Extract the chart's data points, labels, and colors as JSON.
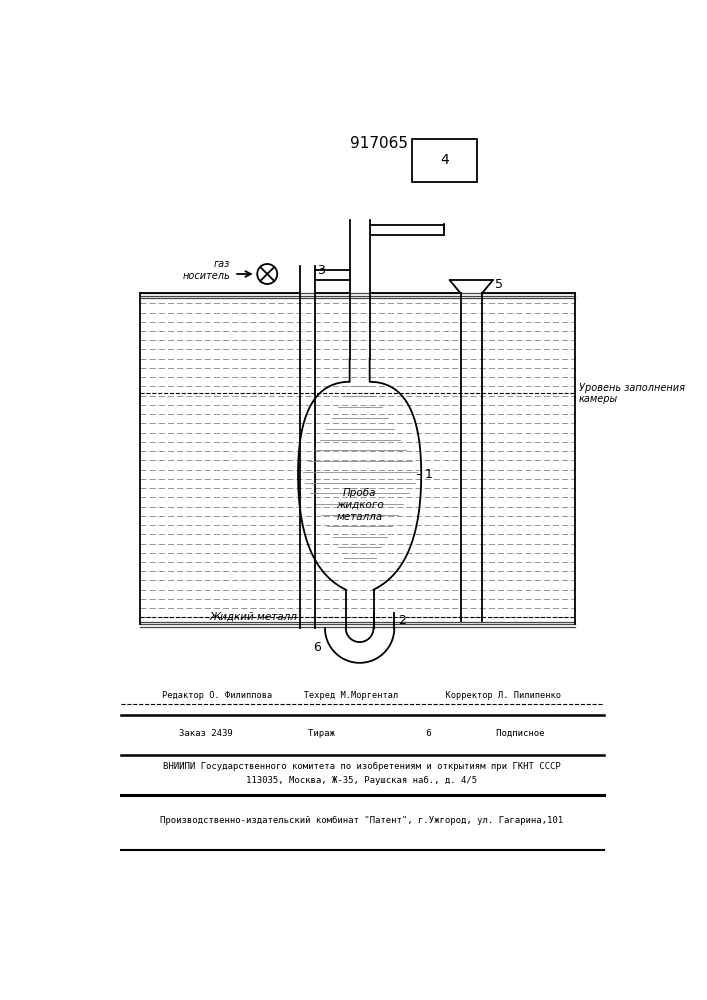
{
  "title": "917065",
  "bg_color": "#ffffff",
  "line_color": "#000000",
  "label_1": "1",
  "label_2": "2",
  "label_3": "3",
  "label_4": "4",
  "label_5": "5",
  "label_6": "6",
  "text_proba": "Проба\nжидкого\nметалла",
  "text_zhidkiy": "Жидкий металл",
  "text_gaz": "газ\nноситель",
  "text_uroven": "Уровень заполнения\nкамеры",
  "footer_line1": "Редактор О. Филиппова      Техред М.Моргентал         Корректор Л. Пилипенко",
  "footer_line2": "Заказ 2439              Тираж                 6            Подписное",
  "footer_line3": "ВНИИПИ Государственного комитета по изобретениям и открытиям при ГКНТ СССР",
  "footer_line4": "113035, Москва, Ж-35, Раушская наб., д. 4/5",
  "footer_line5": "Производственно-издательский комбинат \"Патент\", г.Ужгород, ул. Гагарина,101"
}
